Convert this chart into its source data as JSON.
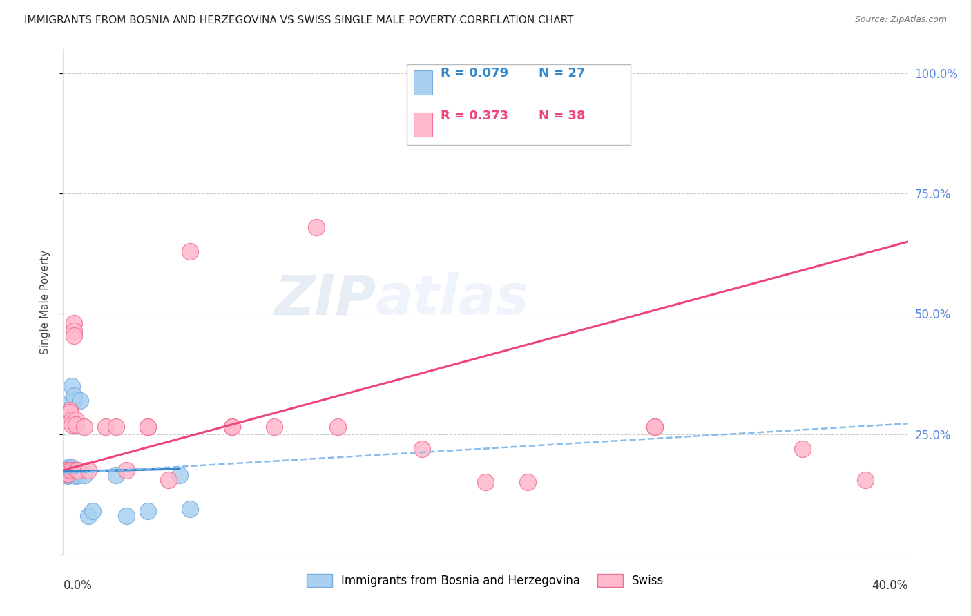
{
  "title": "IMMIGRANTS FROM BOSNIA AND HERZEGOVINA VS SWISS SINGLE MALE POVERTY CORRELATION CHART",
  "source": "Source: ZipAtlas.com",
  "ylabel": "Single Male Poverty",
  "legend_blue_r": "R = 0.079",
  "legend_blue_n": "N = 27",
  "legend_pink_r": "R = 0.373",
  "legend_pink_n": "N = 38",
  "legend_blue_label": "Immigrants from Bosnia and Herzegovina",
  "legend_pink_label": "Swiss",
  "watermark_zip": "ZIP",
  "watermark_atlas": "atlas",
  "blue_color": "#A8D0F0",
  "pink_color": "#FFB8CC",
  "blue_edge": "#7AABDE",
  "pink_edge": "#F07090",
  "trend_blue_solid_color": "#3388CC",
  "trend_blue_dash_color": "#88BBEE",
  "trend_pink_color": "#EE4477",
  "blue_scatter": [
    [
      0.001,
      0.175
    ],
    [
      0.001,
      0.168
    ],
    [
      0.002,
      0.18
    ],
    [
      0.002,
      0.17
    ],
    [
      0.002,
      0.163
    ],
    [
      0.003,
      0.178
    ],
    [
      0.003,
      0.172
    ],
    [
      0.003,
      0.165
    ],
    [
      0.004,
      0.18
    ],
    [
      0.004,
      0.173
    ],
    [
      0.004,
      0.32
    ],
    [
      0.004,
      0.35
    ],
    [
      0.005,
      0.175
    ],
    [
      0.005,
      0.32
    ],
    [
      0.005,
      0.33
    ],
    [
      0.006,
      0.17
    ],
    [
      0.006,
      0.163
    ],
    [
      0.007,
      0.165
    ],
    [
      0.008,
      0.32
    ],
    [
      0.01,
      0.165
    ],
    [
      0.012,
      0.08
    ],
    [
      0.014,
      0.09
    ],
    [
      0.025,
      0.165
    ],
    [
      0.03,
      0.08
    ],
    [
      0.04,
      0.09
    ],
    [
      0.055,
      0.165
    ],
    [
      0.06,
      0.095
    ]
  ],
  "pink_scatter": [
    [
      0.001,
      0.175
    ],
    [
      0.001,
      0.168
    ],
    [
      0.002,
      0.175
    ],
    [
      0.002,
      0.168
    ],
    [
      0.003,
      0.175
    ],
    [
      0.003,
      0.3
    ],
    [
      0.003,
      0.295
    ],
    [
      0.004,
      0.175
    ],
    [
      0.004,
      0.28
    ],
    [
      0.004,
      0.27
    ],
    [
      0.005,
      0.48
    ],
    [
      0.005,
      0.465
    ],
    [
      0.005,
      0.455
    ],
    [
      0.006,
      0.175
    ],
    [
      0.006,
      0.28
    ],
    [
      0.006,
      0.27
    ],
    [
      0.007,
      0.175
    ],
    [
      0.01,
      0.265
    ],
    [
      0.012,
      0.175
    ],
    [
      0.02,
      0.265
    ],
    [
      0.025,
      0.265
    ],
    [
      0.03,
      0.175
    ],
    [
      0.04,
      0.265
    ],
    [
      0.04,
      0.265
    ],
    [
      0.05,
      0.155
    ],
    [
      0.06,
      0.63
    ],
    [
      0.08,
      0.265
    ],
    [
      0.08,
      0.265
    ],
    [
      0.1,
      0.265
    ],
    [
      0.12,
      0.68
    ],
    [
      0.13,
      0.265
    ],
    [
      0.17,
      0.22
    ],
    [
      0.2,
      0.15
    ],
    [
      0.22,
      0.15
    ],
    [
      0.28,
      0.265
    ],
    [
      0.28,
      0.265
    ],
    [
      0.35,
      0.22
    ],
    [
      0.38,
      0.155
    ]
  ],
  "xlim": [
    0.0,
    0.4
  ],
  "ylim": [
    0.0,
    1.05
  ],
  "yticks": [
    0.0,
    0.25,
    0.5,
    0.75,
    1.0
  ],
  "ytick_labels_right": [
    "",
    "25.0%",
    "50.0%",
    "75.0%",
    "100.0%"
  ],
  "grid_color": "#CCCCCC",
  "bg_color": "#FFFFFF",
  "title_fontsize": 11,
  "source_fontsize": 9
}
